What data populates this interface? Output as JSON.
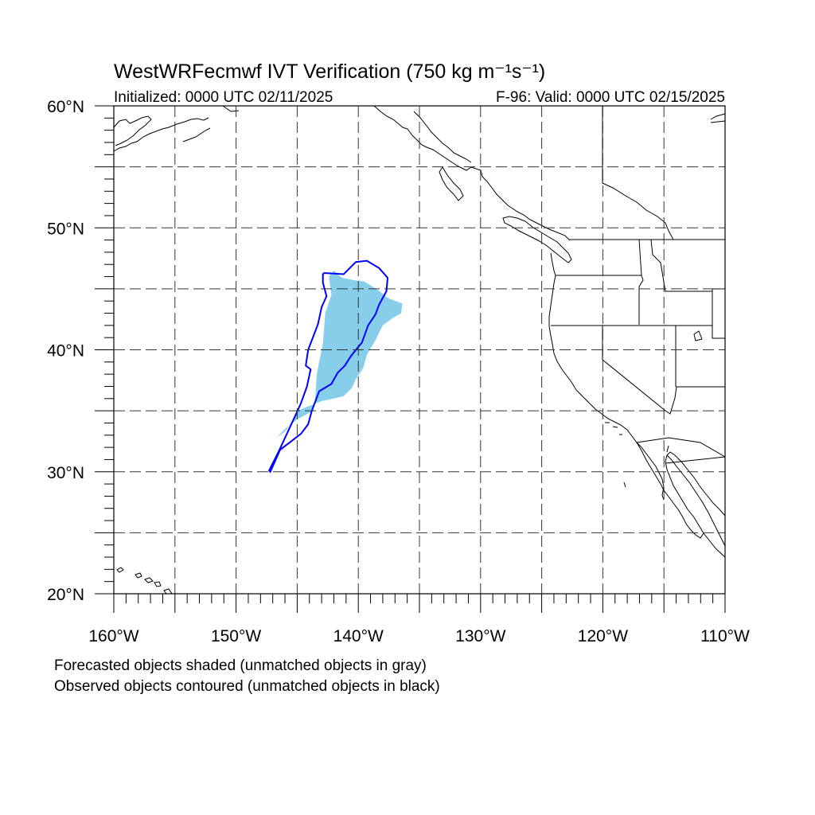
{
  "title": "WestWRFecmwf IVT Verification (750 kg m⁻¹s⁻¹)",
  "initialized": "Initialized: 0000 UTC 02/11/2025",
  "valid": "F-96: Valid: 0000 UTC 02/15/2025",
  "lat_labels": [
    {
      "lat": 60,
      "text": "60°N"
    },
    {
      "lat": 50,
      "text": "50°N"
    },
    {
      "lat": 40,
      "text": "40°N"
    },
    {
      "lat": 30,
      "text": "30°N"
    },
    {
      "lat": 20,
      "text": "20°N"
    }
  ],
  "lon_labels": [
    {
      "lon": -160,
      "text": "160°W"
    },
    {
      "lon": -150,
      "text": "150°W"
    },
    {
      "lon": -140,
      "text": "140°W"
    },
    {
      "lon": -130,
      "text": "130°W"
    },
    {
      "lon": -120,
      "text": "120°W"
    },
    {
      "lon": -110,
      "text": "110°W"
    }
  ],
  "legend": {
    "forecast": "Forecasted objects shaded (unmatched objects in gray)",
    "observed": "Observed objects contoured (unmatched objects in black)"
  },
  "map_extent": {
    "lon_min": -160,
    "lon_max": -110,
    "lat_min": 20,
    "lat_max": 60
  },
  "grid_spacing_deg": 5,
  "colors": {
    "forecast_fill": "#87ceeb",
    "observed_contour": "#0000ff",
    "coast": "#000000"
  },
  "forecast_object": [
    [
      -141.3,
      45.9
    ],
    [
      -140.3,
      45.7
    ],
    [
      -139.5,
      45.6
    ],
    [
      -138.4,
      44.9
    ],
    [
      -137.5,
      44.2
    ],
    [
      -136.4,
      43.8
    ],
    [
      -136.5,
      43.0
    ],
    [
      -137.2,
      42.6
    ],
    [
      -138.0,
      42.0
    ],
    [
      -138.7,
      40.6
    ],
    [
      -139.3,
      39.6
    ],
    [
      -139.6,
      38.5
    ],
    [
      -140.2,
      37.6
    ],
    [
      -140.5,
      36.9
    ],
    [
      -141.2,
      36.2
    ],
    [
      -142.0,
      36.0
    ],
    [
      -143.0,
      35.8
    ],
    [
      -144.0,
      35.4
    ],
    [
      -145.0,
      35.0
    ],
    [
      -145.5,
      34.0
    ],
    [
      -146.0,
      33.3
    ],
    [
      -146.7,
      32.8
    ],
    [
      -146.0,
      33.5
    ],
    [
      -145.0,
      34.3
    ],
    [
      -143.7,
      35.0
    ],
    [
      -143.5,
      36.3
    ],
    [
      -143.4,
      38.0
    ],
    [
      -142.9,
      40.5
    ],
    [
      -142.7,
      43.0
    ],
    [
      -142.2,
      44.5
    ],
    [
      -142.4,
      46.0
    ],
    [
      -142.0,
      46.5
    ],
    [
      -141.6,
      46.1
    ]
  ],
  "observed_object": [
    [
      -142.8,
      46.3
    ],
    [
      -141.2,
      46.2
    ],
    [
      -140.2,
      47.2
    ],
    [
      -139.3,
      47.3
    ],
    [
      -138.3,
      46.7
    ],
    [
      -137.6,
      45.9
    ],
    [
      -137.7,
      44.8
    ],
    [
      -138.3,
      43.7
    ],
    [
      -138.6,
      42.9
    ],
    [
      -139.2,
      42.0
    ],
    [
      -139.7,
      40.6
    ],
    [
      -140.6,
      39.5
    ],
    [
      -141.1,
      38.7
    ],
    [
      -141.7,
      38.1
    ],
    [
      -142.2,
      37.2
    ],
    [
      -143.2,
      36.6
    ],
    [
      -143.8,
      35.0
    ],
    [
      -144.1,
      33.9
    ],
    [
      -144.7,
      33.1
    ],
    [
      -146.4,
      31.8
    ],
    [
      -147.2,
      30.0
    ],
    [
      -147.3,
      30.1
    ],
    [
      -146.5,
      31.7
    ],
    [
      -145.8,
      33.2
    ],
    [
      -145.2,
      34.5
    ],
    [
      -144.7,
      35.6
    ],
    [
      -144.2,
      37.0
    ],
    [
      -143.9,
      38.4
    ],
    [
      -144.3,
      38.7
    ],
    [
      -144.1,
      40.0
    ],
    [
      -143.3,
      42.1
    ],
    [
      -143.0,
      43.5
    ],
    [
      -142.6,
      44.4
    ],
    [
      -142.9,
      45.5
    ],
    [
      -142.9,
      46.2
    ]
  ]
}
